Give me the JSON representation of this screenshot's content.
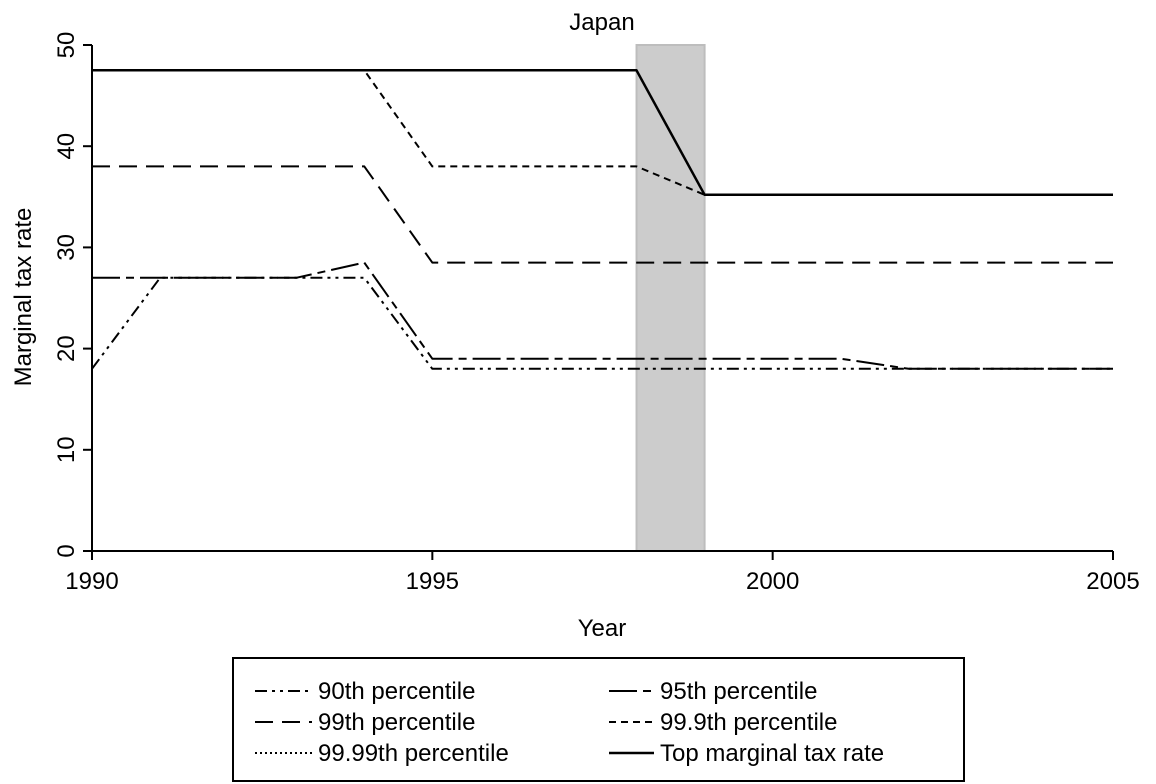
{
  "chart_data": {
    "type": "line",
    "title": "Japan",
    "xlabel": "Year",
    "ylabel": "Marginal tax rate",
    "xlim": [
      1990,
      2005
    ],
    "ylim": [
      0,
      50
    ],
    "xticks": [
      1990,
      1995,
      2000,
      2005
    ],
    "yticks": [
      0,
      10,
      20,
      30,
      40,
      50
    ],
    "grid": false,
    "legend_position": "bottom",
    "shaded_region": {
      "x_start": 1998,
      "x_end": 1999,
      "color": "#cccccc"
    },
    "series": [
      {
        "name": "90th percentile",
        "x": [
          1990,
          1991,
          1994,
          1995,
          2005
        ],
        "y": [
          18,
          27,
          27,
          18,
          18
        ]
      },
      {
        "name": "95th percentile",
        "x": [
          1990,
          1993,
          1994,
          1995,
          2001,
          2002,
          2005
        ],
        "y": [
          27,
          27,
          28.5,
          19,
          19,
          18,
          18
        ]
      },
      {
        "name": "99th percentile",
        "x": [
          1990,
          1994,
          1995,
          2005
        ],
        "y": [
          38,
          38,
          28.5,
          28.5
        ]
      },
      {
        "name": "99.9th percentile",
        "x": [
          1990,
          1994,
          1995,
          1998,
          1999,
          2005
        ],
        "y": [
          47.5,
          47.5,
          38,
          38,
          35.2,
          35.2
        ]
      },
      {
        "name": "99.99th percentile",
        "x": [
          1990,
          1998,
          1999,
          2005
        ],
        "y": [
          47.5,
          47.5,
          35.2,
          35.2
        ]
      },
      {
        "name": "Top marginal tax rate",
        "x": [
          1990,
          1998,
          1999,
          2005
        ],
        "y": [
          47.5,
          47.5,
          35.2,
          35.2
        ]
      }
    ]
  }
}
